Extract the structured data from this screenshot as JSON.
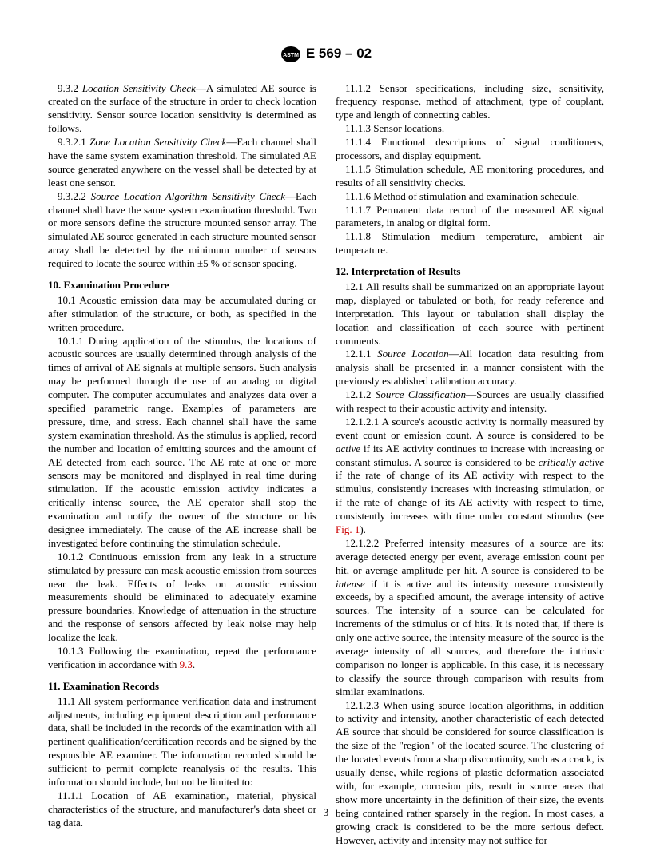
{
  "header": {
    "standard": "E 569 – 02"
  },
  "col1": {
    "p9_3_2": "9.3.2 <i>Location Sensitivity Check</i>—A simulated AE source is created on the surface of the structure in order to check location sensitivity. Sensor source location sensitivity is determined as follows.",
    "p9_3_2_1": "9.3.2.1 <i>Zone Location Sensitivity Check</i>—Each channel shall have the same system examination threshold. The simulated AE source generated anywhere on the vessel shall be detected by at least one sensor.",
    "p9_3_2_2": "9.3.2.2 <i>Source Location Algorithm Sensitivity Check</i>—Each channel shall have the same system examination threshold. Two or more sensors define the structure mounted sensor array. The simulated AE source generated in each structure mounted sensor array shall be detected by the minimum number of sensors required to locate the source within ±5 % of sensor spacing.",
    "h10": "10. Examination Procedure",
    "p10_1": "10.1 Acoustic emission data may be accumulated during or after stimulation of the structure, or both, as specified in the written procedure.",
    "p10_1_1": "10.1.1 During application of the stimulus, the locations of acoustic sources are usually determined through analysis of the times of arrival of AE signals at multiple sensors. Such analysis may be performed through the use of an analog or digital computer. The computer accumulates and analyzes data over a specified parametric range. Examples of parameters are pressure, time, and stress. Each channel shall have the same system examination threshold. As the stimulus is applied, record the number and location of emitting sources and the amount of AE detected from each source. The AE rate at one or more sensors may be monitored and displayed in real time during stimulation. If the acoustic emission activity indicates a critically intense source, the AE operator shall stop the examination and notify the owner of the structure or his designee immediately. The cause of the AE increase shall be investigated before continuing the stimulation schedule.",
    "p10_1_2": "10.1.2 Continuous emission from any leak in a structure stimulated by pressure can mask acoustic emission from sources near the leak. Effects of leaks on acoustic emission measurements should be eliminated to adequately examine pressure boundaries. Knowledge of attenuation in the structure and the response of sensors affected by leak noise may help localize the leak.",
    "p10_1_3_a": "10.1.3 Following the examination, repeat the performance verification in accordance with ",
    "p10_1_3_ref": "9.3",
    "p10_1_3_b": ".",
    "h11": "11. Examination Records",
    "p11_1": "11.1 All system performance verification data and instrument adjustments, including equipment description and performance data, shall be included in the records of the examination with all pertinent qualification/certification records and be signed by the responsible AE examiner. The information recorded should be sufficient to permit complete reanalysis of the results. This information should include, but not be limited to:",
    "p11_1_1": "11.1.1 Location of AE examination, material, physical characteristics of the structure, and manufacturer's data sheet or tag data."
  },
  "col2": {
    "p11_1_2": "11.1.2 Sensor specifications, including size, sensitivity, frequency response, method of attachment, type of couplant, type and length of connecting cables.",
    "p11_1_3": "11.1.3 Sensor locations.",
    "p11_1_4": "11.1.4 Functional descriptions of signal conditioners, processors, and display equipment.",
    "p11_1_5": "11.1.5 Stimulation schedule, AE monitoring procedures, and results of all sensitivity checks.",
    "p11_1_6": "11.1.6 Method of stimulation and examination schedule.",
    "p11_1_7": "11.1.7 Permanent data record of the measured AE signal parameters, in analog or digital form.",
    "p11_1_8": "11.1.8 Stimulation medium temperature, ambient air temperature.",
    "h12": "12. Interpretation of Results",
    "p12_1": "12.1 All results shall be summarized on an appropriate layout map, displayed or tabulated or both, for ready reference and interpretation. This layout or tabulation shall display the location and classification of each source with pertinent comments.",
    "p12_1_1": "12.1.1 <i>Source Location</i>—All location data resulting from analysis shall be presented in a manner consistent with the previously established calibration accuracy.",
    "p12_1_2": "12.1.2 <i>Source Classification</i>—Sources are usually classified with respect to their acoustic activity and intensity.",
    "p12_1_2_1_a": "12.1.2.1 A source's acoustic activity is normally measured by event count or emission count. A source is considered to be <i>active</i> if its AE activity continues to increase with increasing or constant stimulus. A source is considered to be <i>critically active</i> if the rate of change of its AE activity with respect to the stimulus, consistently increases with increasing stimulation, or if the rate of change of its AE activity with respect to time, consistently increases with time under constant stimulus (see ",
    "p12_1_2_1_ref": "Fig. 1",
    "p12_1_2_1_b": ").",
    "p12_1_2_2": "12.1.2.2 Preferred intensity measures of a source are its: average detected energy per event, average emission count per hit, or average amplitude per hit. A source is considered to be <i>intense</i> if it is active and its intensity measure consistently exceeds, by a specified amount, the average intensity of active sources. The intensity of a source can be calculated for increments of the stimulus or of hits. It is noted that, if there is only one active source, the intensity measure of the source is the average intensity of all sources, and therefore the intrinsic comparison no longer is applicable. In this case, it is necessary to classify the source through comparison with results from similar examinations.",
    "p12_1_2_3": "12.1.2.3 When using source location algorithms, in addition to activity and intensity, another characteristic of each detected AE source that should be considered for source classification is the size of the \"region\" of the located source. The clustering of the located events from a sharp discontinuity, such as a crack, is usually dense, while regions of plastic deformation associated with, for example, corrosion pits, result in source areas that show more uncertainty in the definition of their size, the events being contained rather sparsely in the region. In most cases, a growing crack is considered to be the more serious defect. However, activity and intensity may not suffice for"
  },
  "pagenum": "3"
}
